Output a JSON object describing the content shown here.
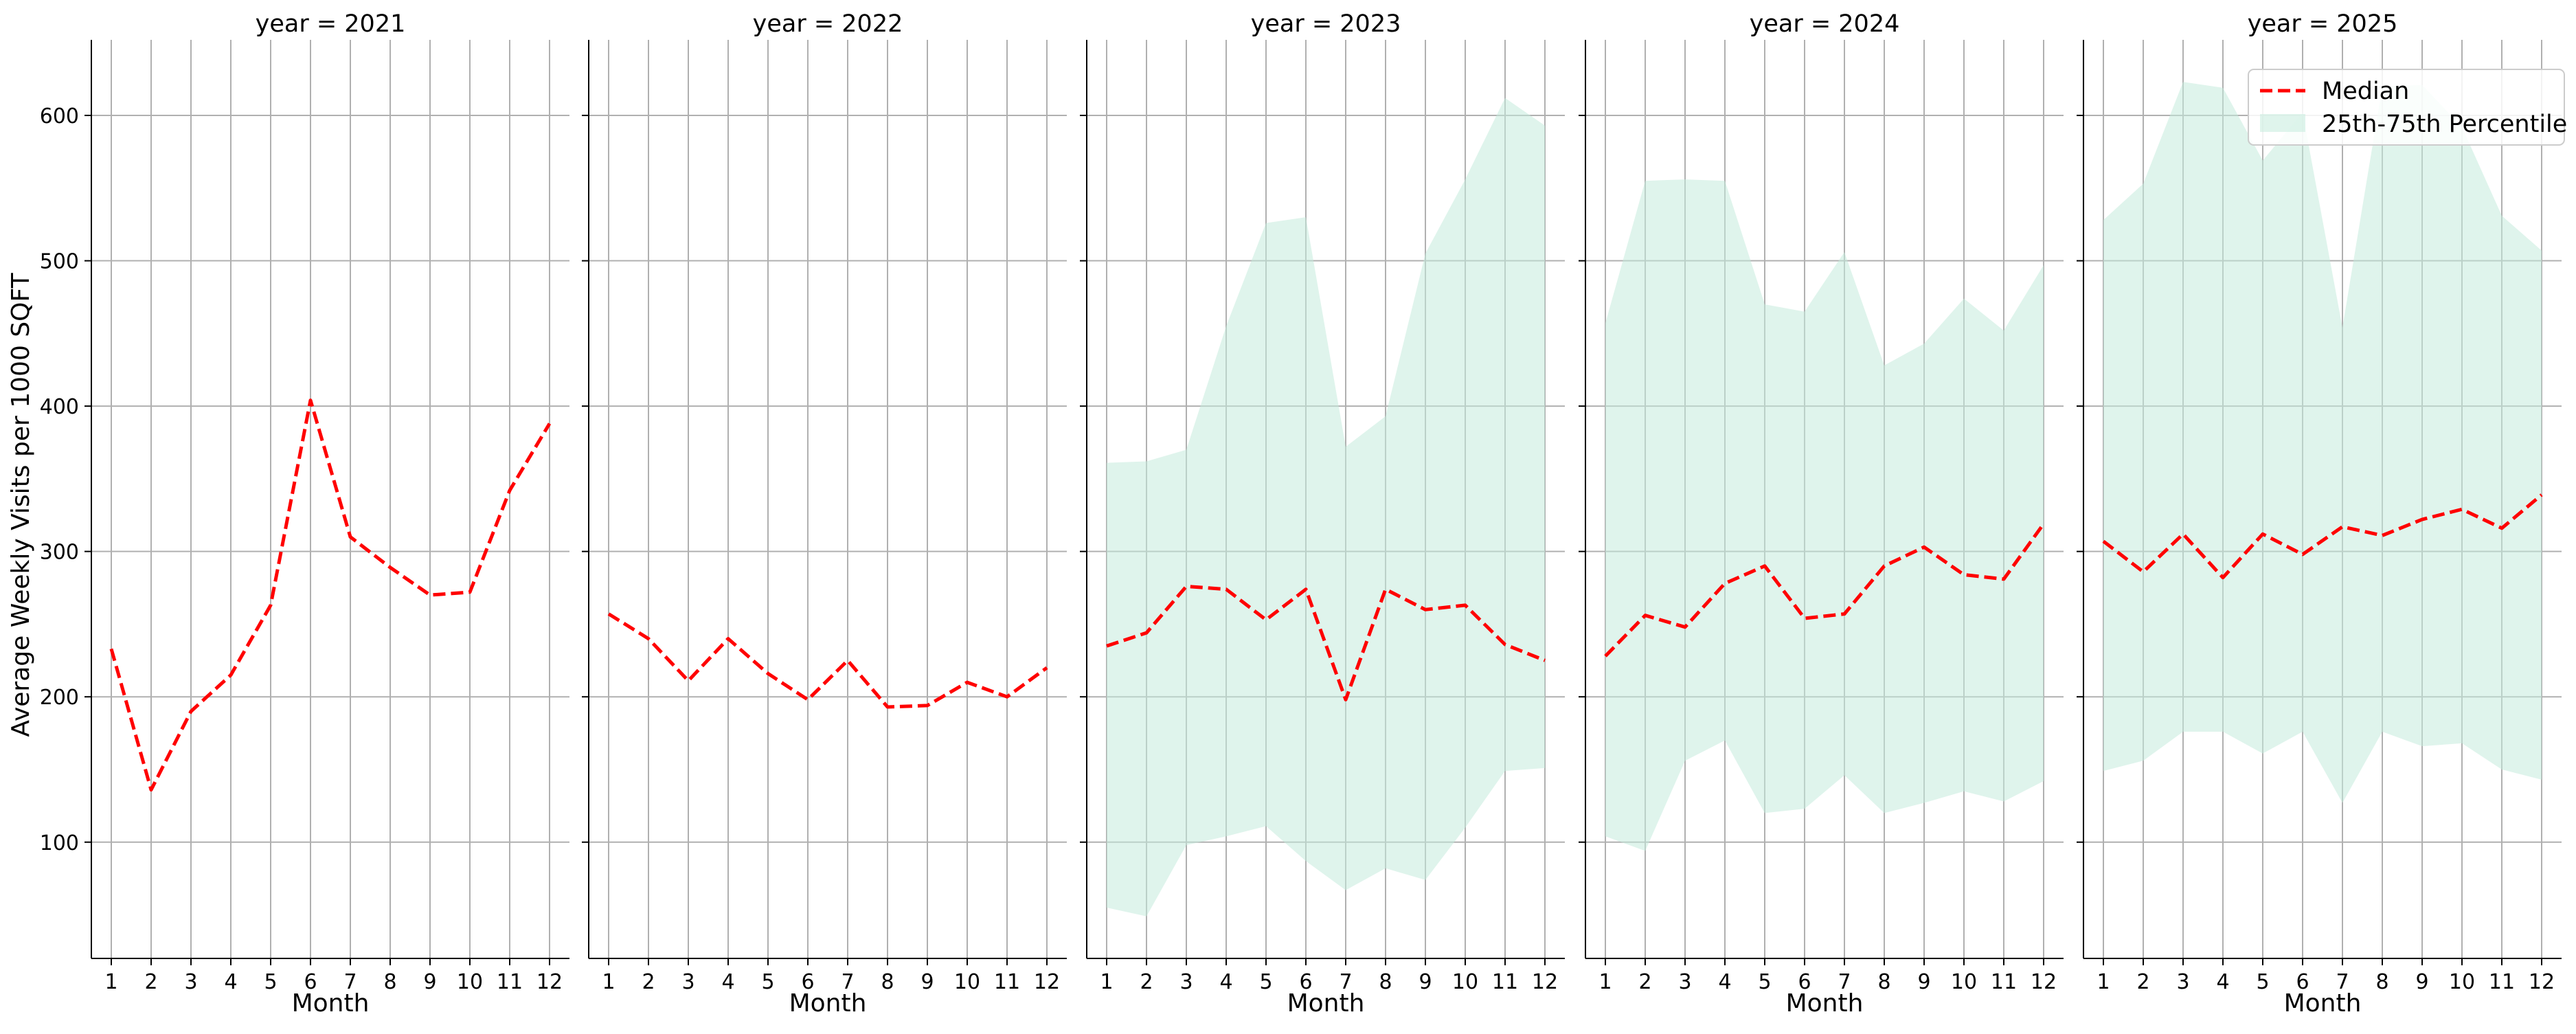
{
  "figure": {
    "ylabel": "Average Weekly Visits per 1000 SQFT",
    "xlabel": "Month"
  },
  "legend": {
    "placement": "top-right",
    "median_label": "Median",
    "band_label": "25th-75th Percentile"
  },
  "colors": {
    "median": "#ff0000",
    "band": "#c4ebdd",
    "grid": "#b0b0b0",
    "axis": "#000000"
  },
  "chart_data": {
    "type": "line",
    "layout": "small-multiples",
    "sharey": true,
    "ylim": [
      20,
      652
    ],
    "yticks": [
      100,
      200,
      300,
      400,
      500,
      600
    ],
    "xticks": [
      1,
      2,
      3,
      4,
      5,
      6,
      7,
      8,
      9,
      10,
      11,
      12
    ],
    "grid": true,
    "panels": [
      {
        "title": "year = 2021",
        "x": [
          1,
          2,
          3,
          4,
          5,
          6,
          7,
          8,
          9,
          10,
          11,
          12
        ],
        "median": [
          233,
          136,
          190,
          215,
          263,
          404,
          310,
          289,
          270,
          272,
          342,
          388
        ],
        "p25": null,
        "p75": null
      },
      {
        "title": "year = 2022",
        "x": [
          1,
          2,
          3,
          4,
          5,
          6,
          7,
          8,
          9,
          10,
          11,
          12
        ],
        "median": [
          257,
          240,
          211,
          240,
          216,
          198,
          225,
          193,
          194,
          210,
          200,
          220
        ],
        "p25": null,
        "p75": null
      },
      {
        "title": "year = 2023",
        "x": [
          1,
          2,
          3,
          4,
          5,
          6,
          7,
          8,
          9,
          10,
          11,
          12
        ],
        "median": [
          235,
          244,
          276,
          274,
          253,
          274,
          198,
          274,
          260,
          263,
          236,
          225
        ],
        "p25": [
          55,
          49,
          98,
          104,
          111,
          87,
          67,
          82,
          74,
          110,
          149,
          151
        ],
        "p75": [
          361,
          362,
          370,
          455,
          526,
          530,
          372,
          393,
          505,
          556,
          612,
          593
        ]
      },
      {
        "title": "year = 2024",
        "x": [
          1,
          2,
          3,
          4,
          5,
          6,
          7,
          8,
          9,
          10,
          11,
          12
        ],
        "median": [
          228,
          256,
          248,
          278,
          290,
          254,
          257,
          290,
          303,
          284,
          281,
          319
        ],
        "p25": [
          104,
          94,
          156,
          170,
          120,
          123,
          146,
          120,
          127,
          135,
          128,
          142
        ],
        "p75": [
          457,
          555,
          556,
          555,
          470,
          465,
          506,
          428,
          443,
          474,
          452,
          497
        ]
      },
      {
        "title": "year = 2025",
        "x": [
          1,
          2,
          3,
          4,
          5,
          6,
          7,
          8,
          9,
          10,
          11,
          12
        ],
        "median": [
          307,
          286,
          312,
          282,
          312,
          298,
          317,
          311,
          322,
          329,
          316,
          339
        ],
        "p25": [
          149,
          156,
          176,
          176,
          161,
          176,
          127,
          176,
          166,
          168,
          150,
          143
        ],
        "p75": [
          528,
          553,
          623,
          619,
          569,
          602,
          454,
          620,
          621,
          592,
          531,
          507
        ]
      }
    ]
  }
}
